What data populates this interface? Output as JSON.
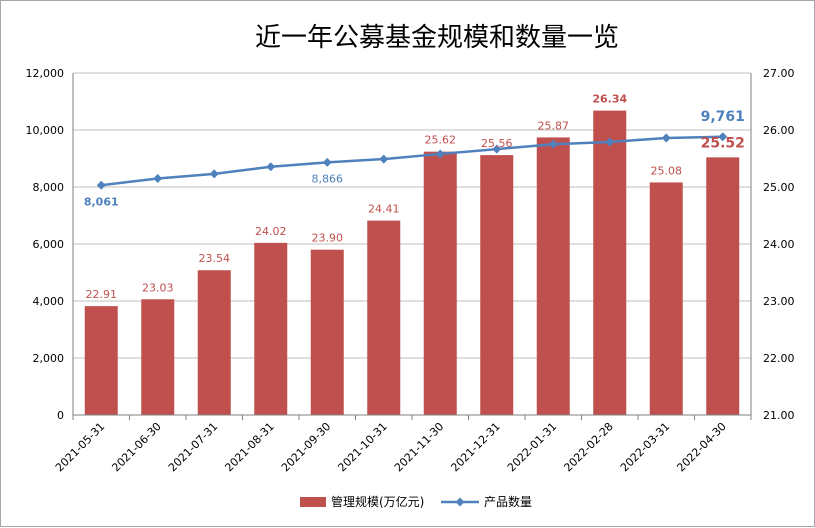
{
  "chart_data": {
    "type": "bar",
    "title": "近一年公募基金规模和数量一览",
    "categories": [
      "2021-05-31",
      "2021-06-30",
      "2021-07-31",
      "2021-08-31",
      "2021-09-30",
      "2021-10-31",
      "2021-11-30",
      "2021-12-31",
      "2022-01-31",
      "2022-02-28",
      "2022-03-31",
      "2022-04-30"
    ],
    "series": [
      {
        "name": "管理规模(万亿元)",
        "type": "bar",
        "axis": "right",
        "color": "#c0504d",
        "values": [
          22.91,
          23.03,
          23.54,
          24.02,
          23.9,
          24.41,
          25.62,
          25.56,
          25.87,
          26.34,
          25.08,
          25.52
        ],
        "labels": [
          "22.91",
          "23.03",
          "23.54",
          "24.02",
          "23.90",
          "24.41",
          "25.62",
          "25.56",
          "25.87",
          "26.34",
          "25.08",
          "25.52"
        ]
      },
      {
        "name": "产品数量",
        "type": "line",
        "axis": "left",
        "color": "#4f81bd",
        "values": [
          8061,
          8300,
          8460,
          8710,
          8866,
          8980,
          9160,
          9330,
          9500,
          9580,
          9720,
          9761
        ],
        "labels": [
          "8,061",
          "",
          "",
          "",
          "8,866",
          "",
          "",
          "",
          "",
          "",
          "",
          "9,761"
        ]
      }
    ],
    "y_left": {
      "min": 0,
      "max": 12000,
      "ticks": [
        "0",
        "2,000",
        "4,000",
        "6,000",
        "8,000",
        "10,000",
        "12,000"
      ]
    },
    "y_right": {
      "min": 21.0,
      "max": 27.0,
      "ticks": [
        "21.00",
        "22.00",
        "23.00",
        "24.00",
        "25.00",
        "26.00",
        "27.00"
      ]
    },
    "legend": {
      "position": "bottom",
      "entries": [
        "管理规模(万亿元)",
        "产品数量"
      ]
    },
    "grid": true
  }
}
